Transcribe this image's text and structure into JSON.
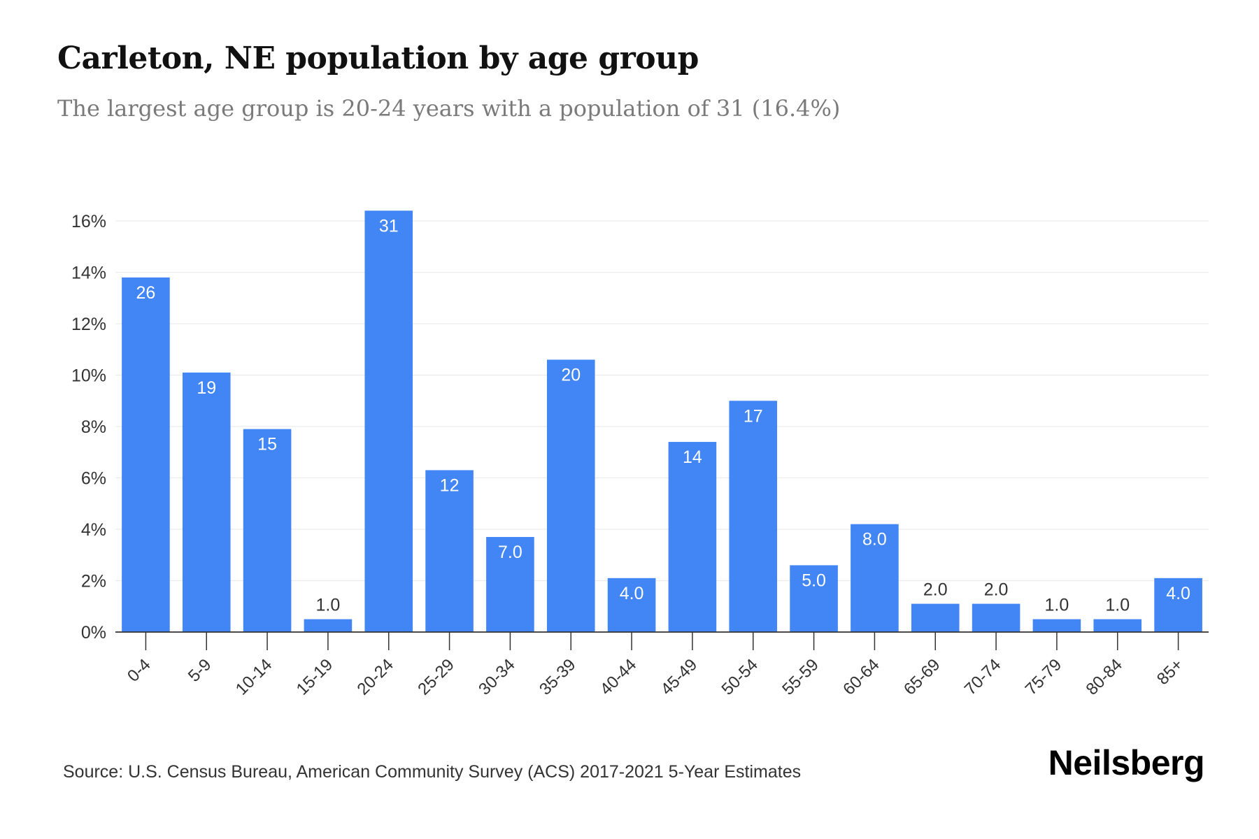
{
  "header": {
    "title": "Carleton, NE population by age group",
    "subtitle": "The largest age group is 20-24 years with a population of 31 (16.4%)"
  },
  "footer": {
    "source": "Source: U.S. Census Bureau, American Community Survey (ACS) 2017-2021 5-Year Estimates",
    "brand": "Neilsberg"
  },
  "colors": {
    "bar": "#4285f4",
    "grid": "#ececec",
    "axis": "#333333"
  },
  "chart_data": {
    "type": "bar",
    "title": "Carleton, NE population by age group",
    "subtitle": "The largest age group is 20-24 years with a population of 31 (16.4%)",
    "categories": [
      "0-4",
      "5-9",
      "10-14",
      "15-19",
      "20-24",
      "25-29",
      "30-34",
      "35-39",
      "40-44",
      "45-49",
      "50-54",
      "55-59",
      "60-64",
      "65-69",
      "70-74",
      "75-79",
      "80-84",
      "85+"
    ],
    "series": [
      {
        "values": [
          13.8,
          10.1,
          7.9,
          0.5,
          16.4,
          6.3,
          3.7,
          10.6,
          2.1,
          7.4,
          9.0,
          2.6,
          4.2,
          1.1,
          1.1,
          0.5,
          0.5,
          2.1
        ],
        "labels": [
          "26",
          "19",
          "15",
          "1.0",
          "31",
          "12",
          "7.0",
          "20",
          "4.0",
          "14",
          "17",
          "5.0",
          "8.0",
          "2.0",
          "2.0",
          "1.0",
          "1.0",
          "4.0"
        ]
      }
    ],
    "ylim": [
      0,
      16
    ],
    "yticks": [
      0,
      2,
      4,
      6,
      8,
      10,
      12,
      14,
      16
    ],
    "ytick_labels": [
      "0%",
      "2%",
      "4%",
      "6%",
      "8%",
      "10%",
      "12%",
      "14%",
      "16%"
    ],
    "grid": true,
    "legend": "none"
  }
}
